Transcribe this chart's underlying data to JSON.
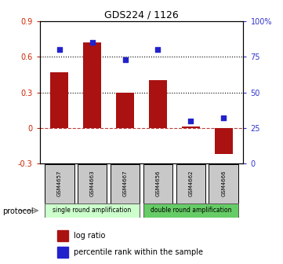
{
  "title": "GDS224 / 1126",
  "samples": [
    "GSM4657",
    "GSM4663",
    "GSM4667",
    "GSM4656",
    "GSM4662",
    "GSM4666"
  ],
  "log_ratio": [
    0.47,
    0.72,
    0.3,
    0.4,
    0.01,
    -0.22
  ],
  "percentile_rank": [
    80,
    85,
    73,
    80,
    30,
    32
  ],
  "bar_color": "#aa1111",
  "dot_color": "#2222cc",
  "ylim_left": [
    -0.3,
    0.9
  ],
  "ylim_right": [
    0,
    100
  ],
  "yticks_left": [
    -0.3,
    0,
    0.3,
    0.6,
    0.9
  ],
  "yticks_right": [
    0,
    25,
    50,
    75,
    100
  ],
  "ytick_labels_right": [
    "0",
    "25",
    "50",
    "75",
    "100%"
  ],
  "hlines": [
    0.3,
    0.6
  ],
  "protocol_label": "protocol",
  "group1_label": "single round amplification",
  "group2_label": "double round amplification",
  "group1_color": "#ccffcc",
  "group2_color": "#66cc66",
  "legend_bar_label": "log ratio",
  "legend_dot_label": "percentile rank within the sample",
  "bar_width": 0.55
}
